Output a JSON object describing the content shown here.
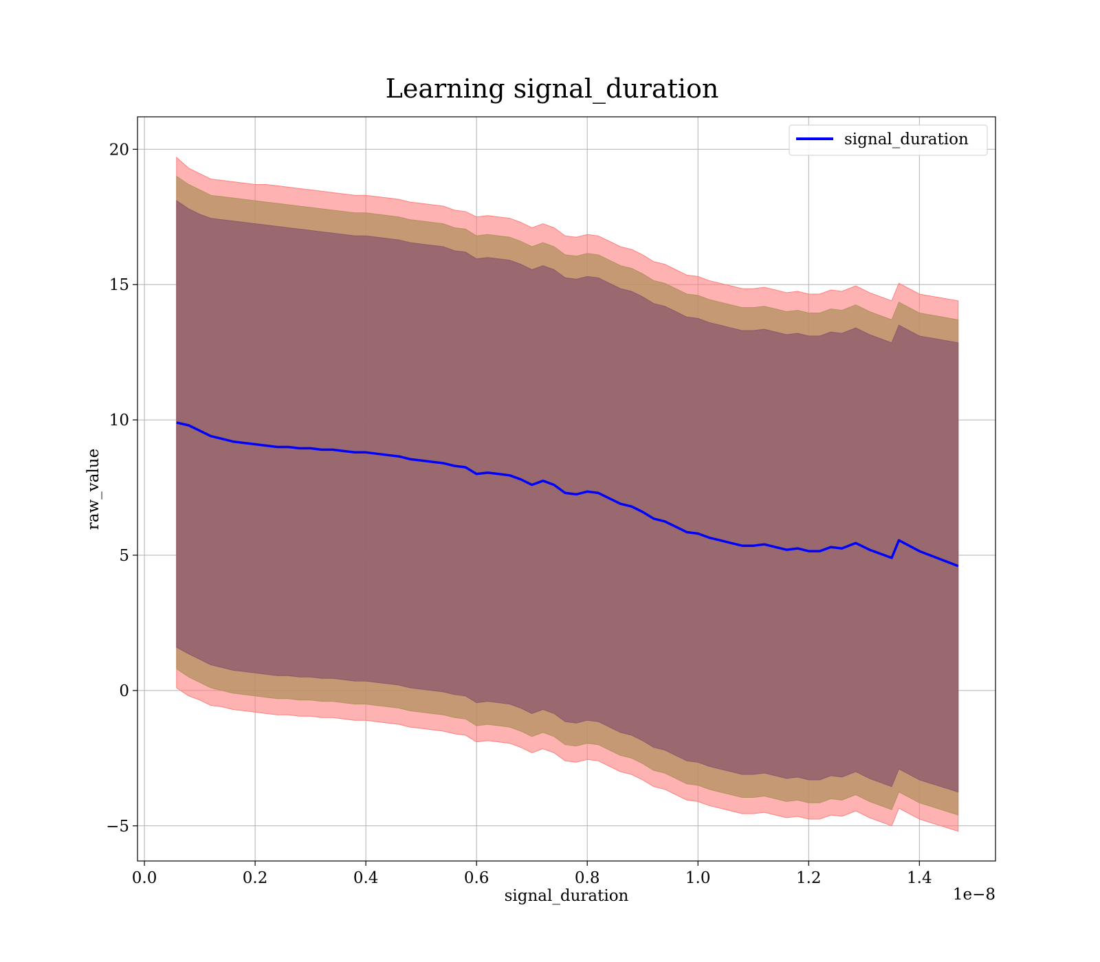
{
  "chart_data": {
    "type": "line",
    "title": "Learning signal_duration",
    "xlabel": "signal_duration",
    "ylabel": "raw_value",
    "x_offset_label": "1e−8",
    "xlim": [
      -0.0125,
      1.5375
    ],
    "ylim": [
      -6.3,
      21.2
    ],
    "xticks": [
      0.0,
      0.2,
      0.4,
      0.6,
      0.8,
      1.0,
      1.2,
      1.4
    ],
    "xtick_labels": [
      "0.0",
      "0.2",
      "0.4",
      "0.6",
      "0.8",
      "1.0",
      "1.2",
      "1.4"
    ],
    "yticks": [
      -5,
      0,
      5,
      10,
      15,
      20
    ],
    "ytick_labels": [
      "−5",
      "0",
      "5",
      "10",
      "15",
      "20"
    ],
    "grid": true,
    "legend_position": "top-right",
    "colors": {
      "line": "#0000ff",
      "band_outer": "#ff7f7f",
      "band_middle": "#b39060",
      "band_inner": "#8a5a6e"
    },
    "x": [
      0.058,
      0.08,
      0.1,
      0.12,
      0.14,
      0.16,
      0.18,
      0.2,
      0.22,
      0.24,
      0.26,
      0.28,
      0.3,
      0.32,
      0.34,
      0.36,
      0.38,
      0.4,
      0.42,
      0.44,
      0.46,
      0.48,
      0.5,
      0.52,
      0.54,
      0.56,
      0.58,
      0.6,
      0.62,
      0.64,
      0.66,
      0.68,
      0.7,
      0.72,
      0.74,
      0.76,
      0.78,
      0.8,
      0.82,
      0.84,
      0.86,
      0.88,
      0.9,
      0.92,
      0.94,
      0.96,
      0.98,
      1.0,
      1.02,
      1.04,
      1.06,
      1.08,
      1.1,
      1.12,
      1.14,
      1.16,
      1.18,
      1.2,
      1.22,
      1.24,
      1.26,
      1.285,
      1.31,
      1.35,
      1.363,
      1.4,
      1.47
    ],
    "series": [
      {
        "name": "signal_duration",
        "values": [
          9.9,
          9.8,
          9.6,
          9.4,
          9.3,
          9.2,
          9.15,
          9.1,
          9.05,
          9.0,
          9.0,
          8.95,
          8.95,
          8.9,
          8.9,
          8.85,
          8.8,
          8.8,
          8.75,
          8.7,
          8.65,
          8.55,
          8.5,
          8.45,
          8.4,
          8.3,
          8.25,
          8.0,
          8.05,
          8.0,
          7.95,
          7.8,
          7.6,
          7.75,
          7.6,
          7.3,
          7.25,
          7.35,
          7.3,
          7.1,
          6.9,
          6.8,
          6.6,
          6.35,
          6.25,
          6.05,
          5.85,
          5.8,
          5.65,
          5.55,
          5.45,
          5.35,
          5.35,
          5.4,
          5.3,
          5.2,
          5.25,
          5.15,
          5.15,
          5.3,
          5.25,
          5.45,
          5.2,
          4.9,
          5.55,
          5.15,
          4.6
        ]
      }
    ],
    "bands": [
      {
        "level": "outer",
        "upper": [
          19.7,
          19.3,
          19.1,
          18.9,
          18.85,
          18.8,
          18.75,
          18.7,
          18.7,
          18.65,
          18.6,
          18.55,
          18.5,
          18.45,
          18.4,
          18.35,
          18.3,
          18.3,
          18.25,
          18.2,
          18.15,
          18.05,
          18.0,
          17.95,
          17.9,
          17.75,
          17.7,
          17.5,
          17.55,
          17.5,
          17.45,
          17.3,
          17.1,
          17.25,
          17.1,
          16.8,
          16.75,
          16.85,
          16.8,
          16.6,
          16.4,
          16.3,
          16.1,
          15.85,
          15.75,
          15.55,
          15.35,
          15.3,
          15.15,
          15.05,
          14.95,
          14.85,
          14.85,
          14.9,
          14.8,
          14.7,
          14.75,
          14.65,
          14.65,
          14.8,
          14.75,
          14.95,
          14.7,
          14.4,
          15.05,
          14.65,
          14.4
        ],
        "lower": [
          0.1,
          -0.2,
          -0.35,
          -0.55,
          -0.6,
          -0.7,
          -0.75,
          -0.8,
          -0.85,
          -0.9,
          -0.9,
          -0.95,
          -0.95,
          -1.0,
          -1.0,
          -1.05,
          -1.1,
          -1.1,
          -1.15,
          -1.2,
          -1.25,
          -1.35,
          -1.4,
          -1.45,
          -1.5,
          -1.6,
          -1.65,
          -1.9,
          -1.85,
          -1.9,
          -1.95,
          -2.1,
          -2.3,
          -2.15,
          -2.3,
          -2.6,
          -2.65,
          -2.55,
          -2.6,
          -2.8,
          -3.0,
          -3.1,
          -3.3,
          -3.55,
          -3.65,
          -3.85,
          -4.05,
          -4.1,
          -4.25,
          -4.35,
          -4.45,
          -4.55,
          -4.55,
          -4.5,
          -4.6,
          -4.7,
          -4.65,
          -4.75,
          -4.75,
          -4.6,
          -4.65,
          -4.45,
          -4.7,
          -5.0,
          -4.35,
          -4.75,
          -5.2
        ]
      },
      {
        "level": "middle",
        "upper": [
          19.0,
          18.7,
          18.5,
          18.3,
          18.25,
          18.2,
          18.15,
          18.1,
          18.05,
          18.0,
          17.95,
          17.9,
          17.85,
          17.8,
          17.75,
          17.7,
          17.65,
          17.65,
          17.6,
          17.55,
          17.5,
          17.4,
          17.35,
          17.3,
          17.25,
          17.1,
          17.05,
          16.8,
          16.85,
          16.8,
          16.75,
          16.6,
          16.4,
          16.55,
          16.4,
          16.1,
          16.05,
          16.15,
          16.1,
          15.9,
          15.7,
          15.6,
          15.4,
          15.15,
          15.05,
          14.85,
          14.65,
          14.6,
          14.45,
          14.35,
          14.25,
          14.15,
          14.15,
          14.2,
          14.1,
          14.0,
          14.05,
          13.95,
          13.95,
          14.1,
          14.05,
          14.25,
          14.0,
          13.7,
          14.35,
          13.95,
          13.7
        ],
        "lower": [
          0.8,
          0.5,
          0.3,
          0.1,
          0.0,
          -0.1,
          -0.15,
          -0.2,
          -0.25,
          -0.3,
          -0.3,
          -0.35,
          -0.35,
          -0.4,
          -0.4,
          -0.45,
          -0.5,
          -0.5,
          -0.55,
          -0.6,
          -0.65,
          -0.75,
          -0.8,
          -0.85,
          -0.9,
          -1.0,
          -1.05,
          -1.3,
          -1.25,
          -1.3,
          -1.35,
          -1.5,
          -1.7,
          -1.55,
          -1.7,
          -2.0,
          -2.05,
          -1.95,
          -2.0,
          -2.2,
          -2.4,
          -2.5,
          -2.7,
          -2.95,
          -3.05,
          -3.25,
          -3.45,
          -3.5,
          -3.65,
          -3.75,
          -3.85,
          -3.95,
          -3.95,
          -3.9,
          -4.0,
          -4.1,
          -4.05,
          -4.15,
          -4.15,
          -4.0,
          -4.05,
          -3.85,
          -4.1,
          -4.4,
          -3.75,
          -4.15,
          -4.6
        ]
      },
      {
        "level": "inner",
        "upper": [
          18.1,
          17.8,
          17.6,
          17.45,
          17.4,
          17.35,
          17.3,
          17.25,
          17.2,
          17.15,
          17.1,
          17.05,
          17.0,
          16.95,
          16.9,
          16.85,
          16.8,
          16.8,
          16.75,
          16.7,
          16.65,
          16.55,
          16.5,
          16.45,
          16.4,
          16.25,
          16.2,
          15.95,
          16.0,
          15.95,
          15.9,
          15.75,
          15.55,
          15.7,
          15.55,
          15.25,
          15.2,
          15.3,
          15.25,
          15.05,
          14.85,
          14.75,
          14.55,
          14.3,
          14.2,
          14.0,
          13.8,
          13.75,
          13.6,
          13.5,
          13.4,
          13.3,
          13.3,
          13.35,
          13.25,
          13.15,
          13.2,
          13.1,
          13.1,
          13.25,
          13.2,
          13.4,
          13.15,
          12.85,
          13.5,
          13.1,
          12.85
        ],
        "lower": [
          1.6,
          1.35,
          1.15,
          0.95,
          0.85,
          0.75,
          0.7,
          0.65,
          0.6,
          0.55,
          0.55,
          0.5,
          0.5,
          0.45,
          0.45,
          0.4,
          0.35,
          0.35,
          0.3,
          0.25,
          0.2,
          0.1,
          0.05,
          0.0,
          -0.05,
          -0.15,
          -0.2,
          -0.45,
          -0.4,
          -0.45,
          -0.5,
          -0.65,
          -0.85,
          -0.7,
          -0.85,
          -1.15,
          -1.2,
          -1.1,
          -1.15,
          -1.35,
          -1.55,
          -1.65,
          -1.85,
          -2.1,
          -2.2,
          -2.4,
          -2.6,
          -2.65,
          -2.8,
          -2.9,
          -3.0,
          -3.1,
          -3.1,
          -3.05,
          -3.15,
          -3.25,
          -3.2,
          -3.3,
          -3.3,
          -3.15,
          -3.2,
          -3.0,
          -3.25,
          -3.55,
          -2.9,
          -3.3,
          -3.75
        ]
      }
    ]
  }
}
